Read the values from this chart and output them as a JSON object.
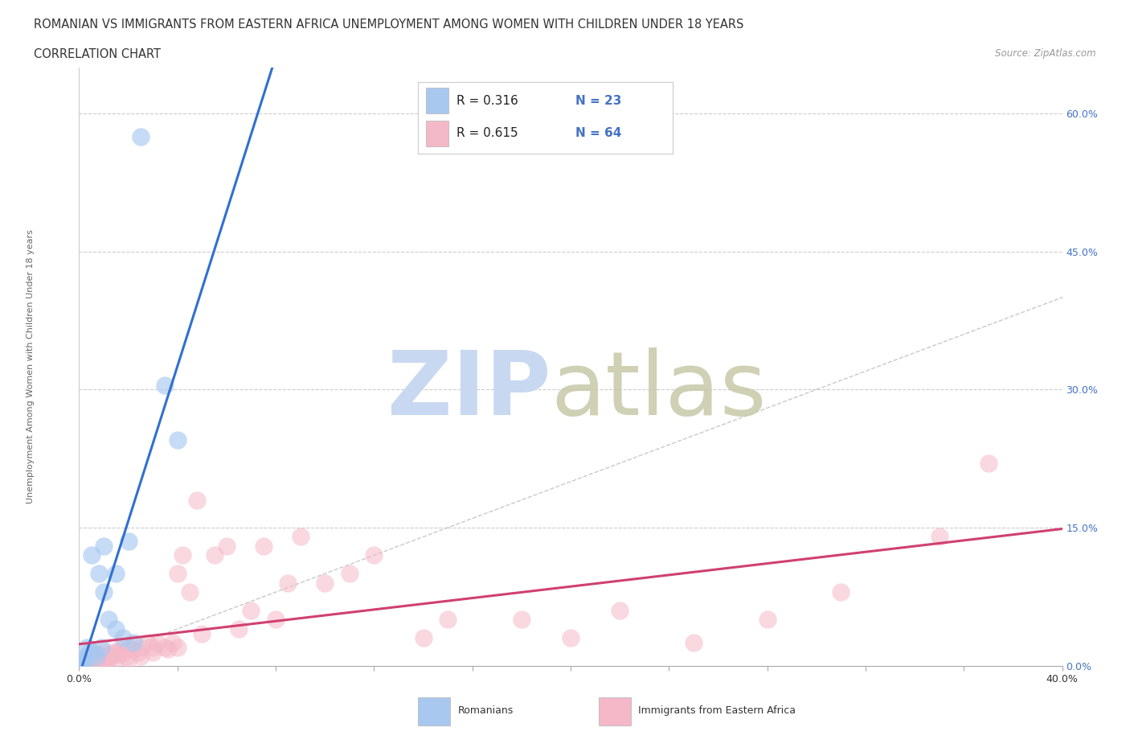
{
  "title_line1": "ROMANIAN VS IMMIGRANTS FROM EASTERN AFRICA UNEMPLOYMENT AMONG WOMEN WITH CHILDREN UNDER 18 YEARS",
  "title_line2": "CORRELATION CHART",
  "source": "Source: ZipAtlas.com",
  "ylabel": "Unemployment Among Women with Children Under 18 years",
  "ytick_labels": [
    "0.0%",
    "15.0%",
    "30.0%",
    "45.0%",
    "60.0%"
  ],
  "ytick_values": [
    0.0,
    0.15,
    0.3,
    0.45,
    0.6
  ],
  "xlim": [
    0.0,
    0.4
  ],
  "ylim": [
    0.0,
    0.65
  ],
  "legend_r1": "R = 0.316",
  "legend_n1": "N = 23",
  "legend_r2": "R = 0.615",
  "legend_n2": "N = 64",
  "blue_scatter_color": "#A8C8F0",
  "pink_scatter_color": "#F5B8C8",
  "blue_line_color": "#3070D0",
  "pink_line_color": "#D04070",
  "diag_line_color": "#BBBBBB",
  "watermark_zip_color": "#C8D8F0",
  "watermark_atlas_color": "#C8C8A8",
  "romanian_x": [
    0.025,
    0.035,
    0.04,
    0.02,
    0.01,
    0.015,
    0.005,
    0.008,
    0.01,
    0.012,
    0.015,
    0.018,
    0.022,
    0.003,
    0.006,
    0.009,
    0.004,
    0.007,
    0.003,
    0.002,
    0.001,
    0.001,
    0.002
  ],
  "romanian_y": [
    0.575,
    0.305,
    0.245,
    0.135,
    0.13,
    0.1,
    0.12,
    0.1,
    0.08,
    0.05,
    0.04,
    0.03,
    0.025,
    0.02,
    0.015,
    0.02,
    0.015,
    0.01,
    0.01,
    0.008,
    0.005,
    0.003,
    0.003
  ],
  "ea_x": [
    0.001,
    0.002,
    0.003,
    0.004,
    0.005,
    0.005,
    0.006,
    0.007,
    0.008,
    0.008,
    0.009,
    0.01,
    0.01,
    0.01,
    0.012,
    0.012,
    0.013,
    0.014,
    0.015,
    0.015,
    0.016,
    0.017,
    0.018,
    0.019,
    0.02,
    0.02,
    0.022,
    0.024,
    0.025,
    0.025,
    0.028,
    0.03,
    0.03,
    0.032,
    0.035,
    0.036,
    0.038,
    0.04,
    0.04,
    0.042,
    0.045,
    0.048,
    0.05,
    0.055,
    0.06,
    0.065,
    0.07,
    0.075,
    0.08,
    0.085,
    0.09,
    0.1,
    0.11,
    0.12,
    0.14,
    0.15,
    0.18,
    0.2,
    0.22,
    0.25,
    0.28,
    0.31,
    0.35,
    0.37
  ],
  "ea_y": [
    0.005,
    0.005,
    0.008,
    0.008,
    0.01,
    0.012,
    0.008,
    0.01,
    0.005,
    0.012,
    0.008,
    0.005,
    0.01,
    0.015,
    0.008,
    0.012,
    0.01,
    0.015,
    0.008,
    0.015,
    0.012,
    0.018,
    0.015,
    0.01,
    0.02,
    0.008,
    0.018,
    0.015,
    0.02,
    0.01,
    0.025,
    0.02,
    0.015,
    0.025,
    0.02,
    0.018,
    0.025,
    0.02,
    0.1,
    0.12,
    0.08,
    0.18,
    0.035,
    0.12,
    0.13,
    0.04,
    0.06,
    0.13,
    0.05,
    0.09,
    0.14,
    0.09,
    0.1,
    0.12,
    0.03,
    0.05,
    0.05,
    0.03,
    0.06,
    0.025,
    0.05,
    0.08,
    0.14,
    0.22
  ]
}
